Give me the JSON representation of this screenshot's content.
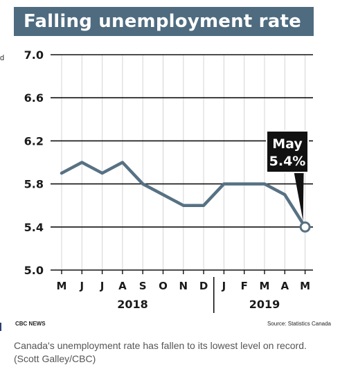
{
  "header": {
    "title": "Falling unemployment rate"
  },
  "edge_fragment": "d",
  "chart_data": {
    "type": "line",
    "title": "Falling unemployment rate",
    "xlabel": "",
    "ylabel": "",
    "ylim": [
      5.0,
      7.0
    ],
    "yticks": [
      "7.0",
      "6.6",
      "6.2",
      "5.8",
      "5.4",
      "5.0"
    ],
    "grid": true,
    "categories": [
      "M",
      "J",
      "J",
      "A",
      "S",
      "O",
      "N",
      "D",
      "J",
      "F",
      "M",
      "A",
      "M"
    ],
    "years": [
      {
        "label": "2018",
        "months": 8
      },
      {
        "label": "2019",
        "months": 5
      }
    ],
    "series": [
      {
        "values": [
          5.9,
          6.0,
          5.9,
          6.0,
          5.8,
          5.7,
          5.6,
          5.6,
          5.8,
          5.8,
          5.8,
          5.7,
          5.4
        ]
      }
    ],
    "annotation": {
      "line1": "May",
      "line2": "5.4%",
      "point_index": 12
    },
    "line_color": "#577184",
    "title_bg": "#4e6b80"
  },
  "footer": {
    "credit_left": "CBC NEWS",
    "source": "Source: Statistics Canada"
  },
  "caption": "Canada's unemployment rate has fallen to its lowest level on record. (Scott Galley/CBC)"
}
